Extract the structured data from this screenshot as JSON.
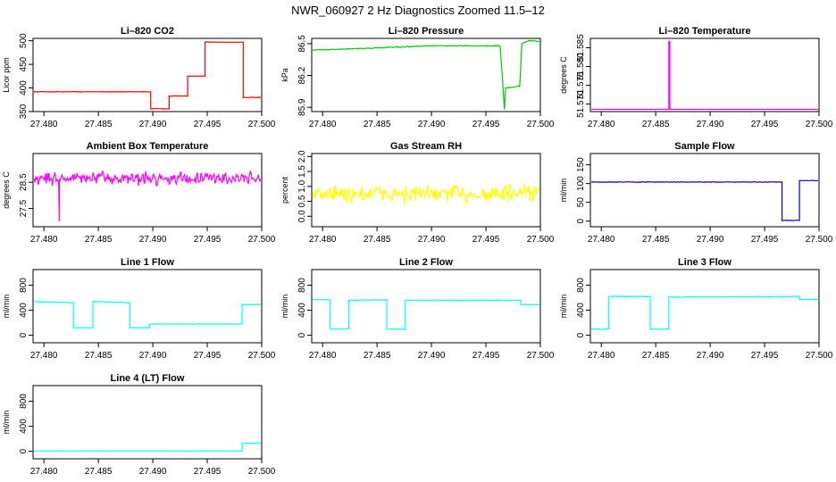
{
  "figure_title": "NWR_060927  2 Hz Diagnostics Zoomed 11.5–12",
  "colors": {
    "co2": "#ff0000",
    "pressure": "#00cc00",
    "temperature": "#ff00ff",
    "ambient": "#ff00ff",
    "rh": "#ffff00",
    "sample": "#0000cc",
    "flow": "#00ffff"
  },
  "chart_data": [
    {
      "id": "co2",
      "type": "line",
      "title": "Li–820 CO2",
      "ylabel": "Licor ppm",
      "xlim": [
        27.479,
        27.5
      ],
      "ylim": [
        350,
        505
      ],
      "xticks": [
        27.48,
        27.485,
        27.49,
        27.495,
        27.5
      ],
      "xticklabels": [
        "27.480",
        "27.485",
        "27.490",
        "27.495",
        "27.500"
      ],
      "yticks": [
        350,
        400,
        450,
        500
      ],
      "yticklabels": [
        "350",
        "400",
        "450",
        "500"
      ],
      "series": [
        {
          "name": "CO2",
          "color_key": "co2",
          "noise": 1.0,
          "x": [
            27.479,
            27.4898,
            27.4898,
            27.4915,
            27.4915,
            27.4932,
            27.4932,
            27.4948,
            27.4948,
            27.4966,
            27.4966,
            27.4983,
            27.4983,
            27.5
          ],
          "y": [
            392,
            392,
            356,
            356,
            383,
            383,
            425,
            425,
            497,
            497,
            497,
            497,
            380,
            380
          ]
        }
      ]
    },
    {
      "id": "pressure",
      "type": "line",
      "title": "Li–820 Pressure",
      "ylabel": "kPa",
      "xlim": [
        27.479,
        27.5
      ],
      "ylim": [
        85.86,
        86.55
      ],
      "xticks": [
        27.48,
        27.485,
        27.49,
        27.495,
        27.5
      ],
      "xticklabels": [
        "27.480",
        "27.485",
        "27.490",
        "27.495",
        "27.500"
      ],
      "yticks": [
        85.9,
        86.2,
        86.5
      ],
      "yticklabels": [
        "85.9",
        "86.2",
        "86.5"
      ],
      "series": [
        {
          "name": "Pressure",
          "color_key": "pressure",
          "noise": 0.008,
          "x": [
            27.479,
            27.485,
            27.49,
            27.4963,
            27.4965,
            27.4967,
            27.4968,
            27.4981,
            27.4983,
            27.499,
            27.5
          ],
          "y": [
            86.44,
            86.46,
            86.48,
            86.48,
            86.2,
            85.88,
            86.08,
            86.1,
            86.5,
            86.53,
            86.52
          ]
        }
      ]
    },
    {
      "id": "temperature",
      "type": "line",
      "title": "Li–820 Temperature",
      "ylabel": "degrees C",
      "xlim": [
        27.479,
        27.5
      ],
      "ylim": [
        51.568,
        51.5875
      ],
      "xticks": [
        27.48,
        27.485,
        27.49,
        27.495,
        27.5
      ],
      "xticklabels": [
        "27.480",
        "27.485",
        "27.490",
        "27.495",
        "27.500"
      ],
      "yticks": [
        51.57,
        51.575,
        51.58,
        51.585
      ],
      "yticklabels": [
        "51.570",
        "51.575",
        "51.580",
        "51.585"
      ],
      "series": [
        {
          "name": "Temperature",
          "color_key": "temperature",
          "noise": 0,
          "x": [
            27.479,
            27.4862,
            27.4862,
            27.4863,
            27.4863,
            27.5
          ],
          "y": [
            51.5686,
            51.5686,
            51.5867,
            51.5867,
            51.5686,
            51.5686
          ]
        }
      ]
    },
    {
      "id": "ambient",
      "type": "line",
      "title": "Ambient Box Temperature",
      "ylabel": "degrees C",
      "xlim": [
        27.479,
        27.5
      ],
      "ylim": [
        26.8,
        29.6
      ],
      "xticks": [
        27.48,
        27.485,
        27.49,
        27.495,
        27.5
      ],
      "xticklabels": [
        "27.480",
        "27.485",
        "27.490",
        "27.495",
        "27.500"
      ],
      "yticks": [
        27.5,
        28.5
      ],
      "yticklabels": [
        "27.5",
        "28.5"
      ],
      "series": [
        {
          "name": "Ambient",
          "color_key": "ambient",
          "noise": 0.35,
          "spikes": [
            [
              27.4814,
              27.0
            ]
          ],
          "x": [
            27.479,
            27.5
          ],
          "y": [
            28.65,
            28.65
          ]
        }
      ]
    },
    {
      "id": "rh",
      "type": "line",
      "title": "Gas Stream RH",
      "ylabel": "percent",
      "xlim": [
        27.479,
        27.5
      ],
      "ylim": [
        -0.35,
        2.1
      ],
      "xticks": [
        27.48,
        27.485,
        27.49,
        27.495,
        27.5
      ],
      "xticklabels": [
        "27.480",
        "27.485",
        "27.490",
        "27.495",
        "27.500"
      ],
      "yticks": [
        0.0,
        0.5,
        1.0,
        1.5,
        2.0
      ],
      "yticklabels": [
        "0.0",
        "0.5",
        "1.0",
        "1.5",
        "2.0"
      ],
      "series": [
        {
          "name": "RH",
          "color_key": "rh",
          "noise": 0.45,
          "x": [
            27.479,
            27.5
          ],
          "y": [
            0.75,
            0.75
          ]
        }
      ]
    },
    {
      "id": "sample",
      "type": "line",
      "title": "Sample Flow",
      "ylabel": "ml/min",
      "xlim": [
        27.479,
        27.5
      ],
      "ylim": [
        -15,
        180
      ],
      "xticks": [
        27.48,
        27.485,
        27.49,
        27.495,
        27.5
      ],
      "xticklabels": [
        "27.480",
        "27.485",
        "27.490",
        "27.495",
        "27.500"
      ],
      "yticks": [
        0,
        50,
        100,
        150
      ],
      "yticklabels": [
        "0",
        "50",
        "100",
        "150"
      ],
      "series": [
        {
          "name": "Sample Flow",
          "color_key": "sample",
          "noise": 1.2,
          "x": [
            27.479,
            27.4966,
            27.4966,
            27.4982,
            27.4982,
            27.5
          ],
          "y": [
            104,
            104,
            2,
            2,
            108,
            108
          ]
        }
      ]
    },
    {
      "id": "line1",
      "type": "line",
      "title": "Line 1 Flow",
      "ylabel": "ml/min",
      "xlim": [
        27.479,
        27.5
      ],
      "ylim": [
        -120,
        1050
      ],
      "xticks": [
        27.48,
        27.485,
        27.49,
        27.495,
        27.5
      ],
      "xticklabels": [
        "27.480",
        "27.485",
        "27.490",
        "27.495",
        "27.500"
      ],
      "yticks": [
        0,
        400,
        800
      ],
      "yticklabels": [
        "0",
        "400",
        "800"
      ],
      "series": [
        {
          "name": "Line 1",
          "color_key": "flow",
          "noise": 8,
          "x": [
            27.479,
            27.4827,
            27.4827,
            27.4845,
            27.4845,
            27.4879,
            27.4879,
            27.4897,
            27.4897,
            27.4982,
            27.4982,
            27.5
          ],
          "y": [
            540,
            520,
            120,
            120,
            540,
            520,
            120,
            120,
            180,
            180,
            490,
            490
          ]
        }
      ]
    },
    {
      "id": "line2",
      "type": "line",
      "title": "Line 2 Flow",
      "ylabel": "ml/min",
      "xlim": [
        27.479,
        27.5
      ],
      "ylim": [
        -120,
        1050
      ],
      "xticks": [
        27.48,
        27.485,
        27.49,
        27.495,
        27.5
      ],
      "xticklabels": [
        "27.480",
        "27.485",
        "27.490",
        "27.495",
        "27.500"
      ],
      "yticks": [
        0,
        400,
        800
      ],
      "yticklabels": [
        "0",
        "400",
        "800"
      ],
      "series": [
        {
          "name": "Line 2",
          "color_key": "flow",
          "noise": 10,
          "x": [
            27.479,
            27.4807,
            27.4807,
            27.4824,
            27.4824,
            27.4859,
            27.4859,
            27.4876,
            27.4876,
            27.4982,
            27.4982,
            27.5
          ],
          "y": [
            570,
            570,
            100,
            100,
            560,
            565,
            100,
            100,
            560,
            560,
            490,
            490
          ]
        }
      ]
    },
    {
      "id": "line3",
      "type": "line",
      "title": "Line 3 Flow",
      "ylabel": "ml/min",
      "xlim": [
        27.479,
        27.5
      ],
      "ylim": [
        -120,
        1050
      ],
      "xticks": [
        27.48,
        27.485,
        27.49,
        27.495,
        27.5
      ],
      "xticklabels": [
        "27.480",
        "27.485",
        "27.490",
        "27.495",
        "27.500"
      ],
      "yticks": [
        0,
        400,
        800
      ],
      "yticklabels": [
        "0",
        "400",
        "800"
      ],
      "series": [
        {
          "name": "Line 3",
          "color_key": "flow",
          "noise": 10,
          "x": [
            27.479,
            27.4807,
            27.4807,
            27.4845,
            27.4845,
            27.4862,
            27.4862,
            27.4982,
            27.4982,
            27.5
          ],
          "y": [
            100,
            100,
            620,
            620,
            100,
            100,
            610,
            620,
            570,
            570
          ]
        }
      ]
    },
    {
      "id": "line4",
      "type": "line",
      "title": "Line 4 (LT) Flow",
      "ylabel": "ml/min",
      "xlim": [
        27.479,
        27.5
      ],
      "ylim": [
        -120,
        1050
      ],
      "xticks": [
        27.48,
        27.485,
        27.49,
        27.495,
        27.5
      ],
      "xticklabels": [
        "27.480",
        "27.485",
        "27.490",
        "27.495",
        "27.500"
      ],
      "yticks": [
        0,
        400,
        800
      ],
      "yticklabels": [
        "0",
        "400",
        "800"
      ],
      "series": [
        {
          "name": "Line 4",
          "color_key": "flow",
          "noise": 3,
          "x": [
            27.479,
            27.4982,
            27.4982,
            27.5
          ],
          "y": [
            5,
            5,
            130,
            130
          ]
        }
      ]
    }
  ]
}
